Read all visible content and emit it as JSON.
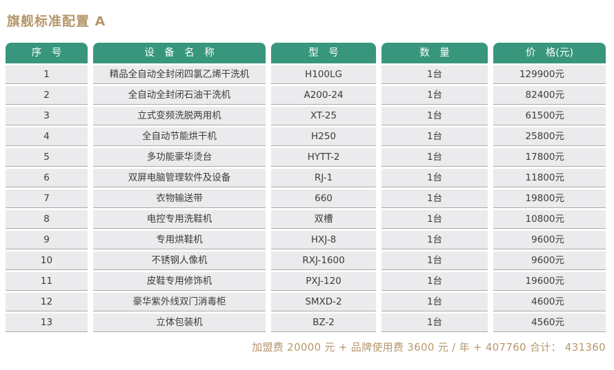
{
  "page": {
    "title": "旗舰标准配置 A",
    "footer": "加盟费 20000 元 + 品牌使用费 3600 元 / 年 + 407760 合计： 431360"
  },
  "colors": {
    "header_green": "#37967c",
    "title_gold": "#b6976c",
    "row_bg": "#ebebed",
    "row_border": "#a9a9ab",
    "header_text": "#ffffff",
    "body_text": "#3b3b3b"
  },
  "table": {
    "headers": [
      "序　号",
      "设　备　名　称",
      "型　号",
      "数　量",
      "价　格(元)"
    ],
    "rows": [
      {
        "no": "1",
        "name": "精品全自动全封闭四氯乙烯干洗机",
        "model": "H100LG",
        "qty": "1台",
        "price": "129900元"
      },
      {
        "no": "2",
        "name": "全自动全封闭石油干洗机",
        "model": "A200-24",
        "qty": "1台",
        "price": "82400元"
      },
      {
        "no": "3",
        "name": "立式变频洗脱两用机",
        "model": "XT-25",
        "qty": "1台",
        "price": "61500元"
      },
      {
        "no": "4",
        "name": "全自动节能烘干机",
        "model": "H250",
        "qty": "1台",
        "price": "25800元"
      },
      {
        "no": "5",
        "name": "多功能豪华烫台",
        "model": "HYTT-2",
        "qty": "1台",
        "price": "17800元"
      },
      {
        "no": "6",
        "name": "双屏电脑管理软件及设备",
        "model": "RJ-1",
        "qty": "1台",
        "price": "11800元"
      },
      {
        "no": "7",
        "name": "衣物输送带",
        "model": "660",
        "qty": "1台",
        "price": "19800元"
      },
      {
        "no": "8",
        "name": "电控专用洗鞋机",
        "model": "双槽",
        "qty": "1台",
        "price": "10800元"
      },
      {
        "no": "9",
        "name": "专用烘鞋机",
        "model": "HXJ-8",
        "qty": "1台",
        "price": "9600元"
      },
      {
        "no": "10",
        "name": "不锈钢人像机",
        "model": "RXJ-1600",
        "qty": "1台",
        "price": "9600元"
      },
      {
        "no": "11",
        "name": "皮鞋专用修饰机",
        "model": "PXJ-120",
        "qty": "1台",
        "price": "19600元"
      },
      {
        "no": "12",
        "name": "豪华紫外线双门消毒柜",
        "model": "SMXD-2",
        "qty": "1台",
        "price": "4600元"
      },
      {
        "no": "13",
        "name": "立体包装机",
        "model": "BZ-2",
        "qty": "1台",
        "price": "4560元"
      }
    ]
  }
}
